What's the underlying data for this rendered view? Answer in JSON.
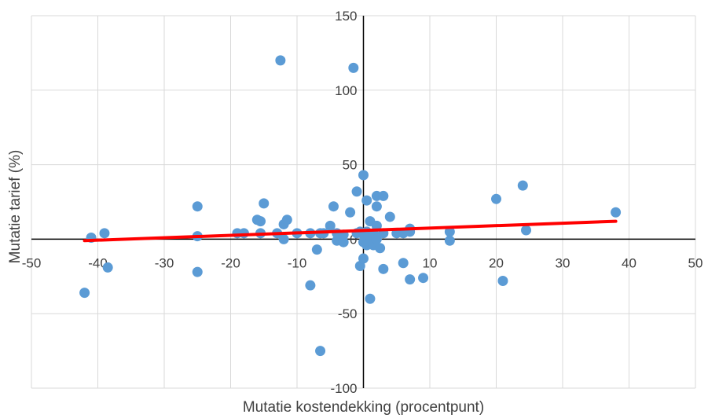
{
  "chart_data": {
    "type": "scatter",
    "title": "",
    "xlabel": "Mutatie kostendekking (procentpunt)",
    "ylabel": "Mutatie tarief (%)",
    "xlim": [
      -50,
      50
    ],
    "ylim": [
      -100,
      150
    ],
    "x_ticks": [
      -50,
      -40,
      -30,
      -20,
      -10,
      0,
      10,
      20,
      30,
      40,
      50
    ],
    "y_ticks": [
      -100,
      -50,
      50,
      100,
      150
    ],
    "origin_label": "0",
    "grid": true,
    "legend": "none",
    "colors": {
      "points": "#5b9bd5",
      "trendline": "#ff0000",
      "grid": "#d9d9d9"
    },
    "points": [
      {
        "x": -42,
        "y": -36
      },
      {
        "x": -41,
        "y": 1
      },
      {
        "x": -39,
        "y": 4
      },
      {
        "x": -38.5,
        "y": -19
      },
      {
        "x": -25,
        "y": 22
      },
      {
        "x": -25,
        "y": 2
      },
      {
        "x": -25,
        "y": -22
      },
      {
        "x": -19,
        "y": 4
      },
      {
        "x": -18,
        "y": 4
      },
      {
        "x": -16,
        "y": 13
      },
      {
        "x": -15.5,
        "y": 12
      },
      {
        "x": -15.5,
        "y": 4
      },
      {
        "x": -15,
        "y": 24
      },
      {
        "x": -13,
        "y": 4
      },
      {
        "x": -12.5,
        "y": 120
      },
      {
        "x": -12,
        "y": 10
      },
      {
        "x": -12,
        "y": 0
      },
      {
        "x": -11.5,
        "y": 13
      },
      {
        "x": -10,
        "y": 4
      },
      {
        "x": -8,
        "y": -31
      },
      {
        "x": -8,
        "y": 4
      },
      {
        "x": -7,
        "y": -7
      },
      {
        "x": -6.5,
        "y": -75
      },
      {
        "x": -6.5,
        "y": 4
      },
      {
        "x": -6,
        "y": 4
      },
      {
        "x": -5,
        "y": 9
      },
      {
        "x": -4.5,
        "y": 22
      },
      {
        "x": -4,
        "y": 4
      },
      {
        "x": -4,
        "y": -1
      },
      {
        "x": -3,
        "y": -2
      },
      {
        "x": -3,
        "y": 3
      },
      {
        "x": -2,
        "y": 18
      },
      {
        "x": -1.5,
        "y": 115
      },
      {
        "x": -1,
        "y": 32
      },
      {
        "x": -1,
        "y": 4
      },
      {
        "x": -0.5,
        "y": -18
      },
      {
        "x": -0.5,
        "y": 5
      },
      {
        "x": 0,
        "y": 43
      },
      {
        "x": 0,
        "y": -13
      },
      {
        "x": 0,
        "y": -2
      },
      {
        "x": 0,
        "y": 3
      },
      {
        "x": 0.5,
        "y": 26
      },
      {
        "x": 0.5,
        "y": 5
      },
      {
        "x": 0.5,
        "y": -4
      },
      {
        "x": 1,
        "y": -40
      },
      {
        "x": 1,
        "y": 12
      },
      {
        "x": 1,
        "y": 2
      },
      {
        "x": 1.5,
        "y": -4
      },
      {
        "x": 1.5,
        "y": 4
      },
      {
        "x": 2,
        "y": 29
      },
      {
        "x": 2,
        "y": 22
      },
      {
        "x": 2,
        "y": 9
      },
      {
        "x": 2,
        "y": 0
      },
      {
        "x": 2.5,
        "y": -6
      },
      {
        "x": 3,
        "y": 29
      },
      {
        "x": 3,
        "y": 4
      },
      {
        "x": 3,
        "y": -20
      },
      {
        "x": 4,
        "y": 15
      },
      {
        "x": 5,
        "y": 4
      },
      {
        "x": 6,
        "y": 4
      },
      {
        "x": 6,
        "y": -16
      },
      {
        "x": 7,
        "y": 5
      },
      {
        "x": 7,
        "y": 7
      },
      {
        "x": 7,
        "y": -27
      },
      {
        "x": 9,
        "y": -26
      },
      {
        "x": 13,
        "y": 5
      },
      {
        "x": 13,
        "y": -1
      },
      {
        "x": 20,
        "y": 27
      },
      {
        "x": 21,
        "y": -28
      },
      {
        "x": 24,
        "y": 36
      },
      {
        "x": 24.5,
        "y": 6
      },
      {
        "x": 38,
        "y": 18
      }
    ],
    "trendline": {
      "type": "linear",
      "x": [
        -42,
        38
      ],
      "y": [
        -1,
        12
      ]
    }
  }
}
